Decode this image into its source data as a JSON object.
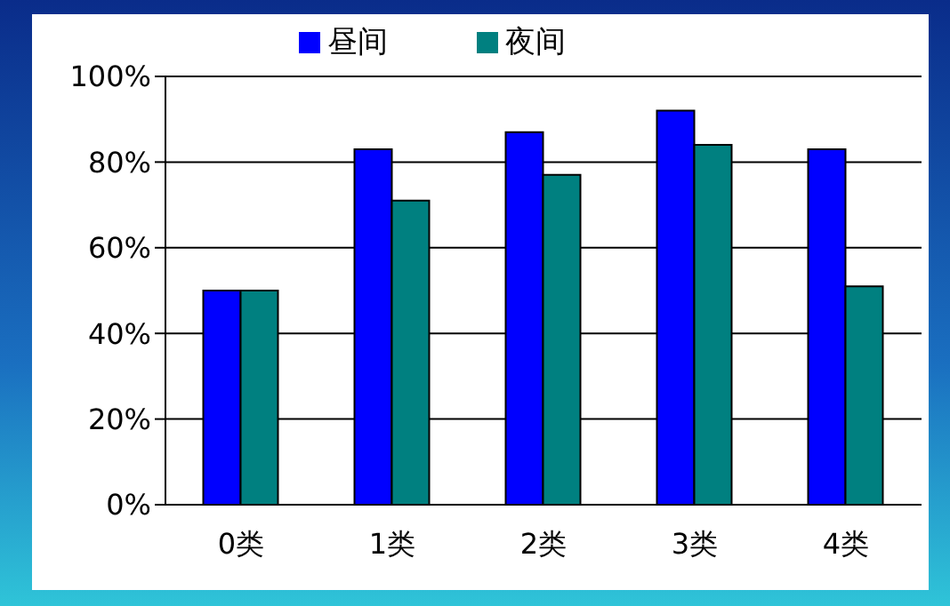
{
  "chart_data": {
    "type": "bar",
    "categories": [
      "0类",
      "1类",
      "2类",
      "3类",
      "4类"
    ],
    "series": [
      {
        "name": "昼间",
        "color": "#0000ff",
        "values": [
          50,
          83,
          87,
          92,
          83
        ]
      },
      {
        "name": "夜间",
        "color": "#008080",
        "values": [
          50,
          71,
          77,
          84,
          51
        ]
      }
    ],
    "ylim": [
      0,
      100
    ],
    "yticks": [
      {
        "value": 0,
        "label": "0%"
      },
      {
        "value": 20,
        "label": "20%"
      },
      {
        "value": 40,
        "label": "40%"
      },
      {
        "value": 60,
        "label": "60%"
      },
      {
        "value": 80,
        "label": "80%"
      },
      {
        "value": 100,
        "label": "100%"
      }
    ],
    "grid": "y",
    "legend": "top"
  }
}
